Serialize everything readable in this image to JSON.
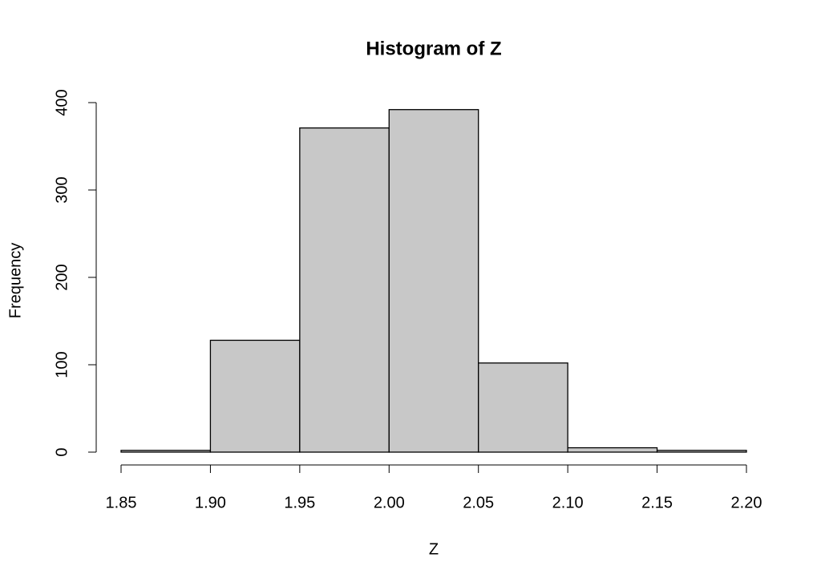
{
  "chart_data": {
    "type": "histogram",
    "title": "Histogram of Z",
    "x_label": "Z",
    "y_label": "Frequency",
    "bins": [
      1.85,
      1.9,
      1.95,
      2.0,
      2.05,
      2.1,
      2.15,
      2.2
    ],
    "values": [
      2,
      128,
      371,
      392,
      102,
      5,
      2
    ],
    "color": "#c8c8c8",
    "xlim": [
      1.85,
      2.2
    ],
    "xticks": [
      1.85,
      {
        "value": 1.9,
        "label": "1.90"
      },
      1.95,
      {
        "value": 2.0,
        "label": "2.00"
      },
      2.05,
      {
        "value": 2.1,
        "label": "2.10"
      },
      2.15,
      {
        "value": 2.2,
        "label": "2.20"
      }
    ],
    "ylim": [
      0,
      400
    ],
    "yticks": [
      0,
      100,
      200,
      300,
      400
    ],
    "grid": false
  }
}
